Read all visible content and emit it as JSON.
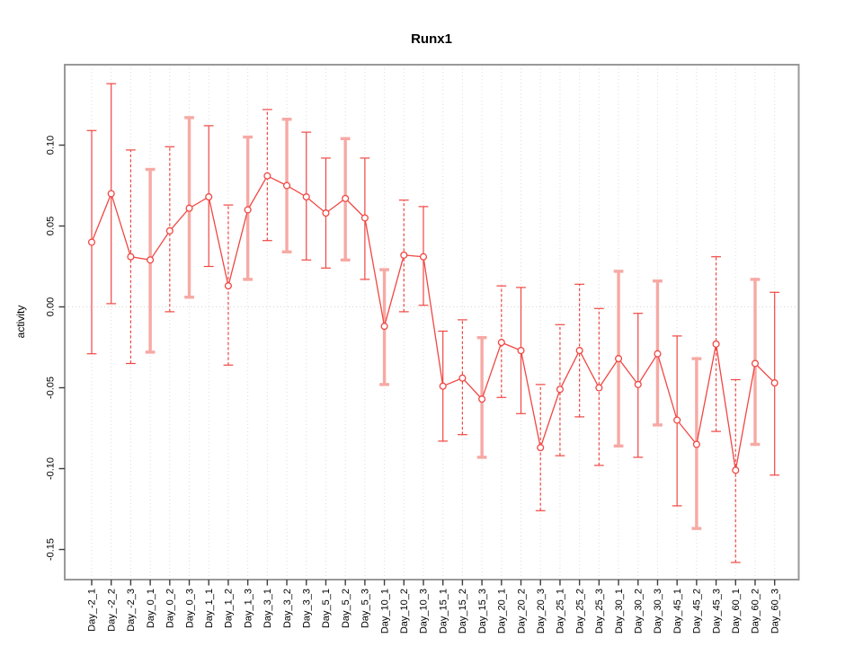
{
  "chart_data": {
    "type": "line",
    "title": "Runx1",
    "xlabel": "",
    "ylabel": "activity",
    "ylim": [
      -0.17,
      0.145
    ],
    "yticks": [
      "0.10",
      "0.05",
      "0.00",
      "-0.05",
      "-0.10",
      "-0.15"
    ],
    "grid": {
      "vertical": "dotted line at every category",
      "horizontal": "dotted reference line at y=0 only"
    },
    "legend": "none",
    "error_bars": true,
    "categories": [
      "Day_-2_1",
      "Day_-2_2",
      "Day_-2_3",
      "Day_0_1",
      "Day_0_2",
      "Day_0_3",
      "Day_1_1",
      "Day_1_2",
      "Day_1_3",
      "Day_3_1",
      "Day_3_2",
      "Day_3_3",
      "Day_5_1",
      "Day_5_2",
      "Day_5_3",
      "Day_10_1",
      "Day_10_2",
      "Day_10_3",
      "Day_15_1",
      "Day_15_2",
      "Day_15_3",
      "Day_20_1",
      "Day_20_2",
      "Day_20_3",
      "Day_25_1",
      "Day_25_2",
      "Day_25_3",
      "Day_30_1",
      "Day_30_2",
      "Day_30_3",
      "Day_45_1",
      "Day_45_2",
      "Day_45_3",
      "Day_60_1",
      "Day_60_2",
      "Day_60_3"
    ],
    "series": [
      {
        "name": "activity",
        "marker": "open-circle",
        "values": [
          0.04,
          0.07,
          0.031,
          0.029,
          0.047,
          0.061,
          0.068,
          0.013,
          0.06,
          0.081,
          0.075,
          0.068,
          0.058,
          0.067,
          0.055,
          -0.012,
          0.032,
          0.031,
          -0.049,
          -0.044,
          -0.057,
          -0.022,
          -0.027,
          -0.087,
          -0.051,
          -0.027,
          -0.05,
          -0.032,
          -0.048,
          -0.029,
          -0.07,
          -0.085,
          -0.023,
          -0.101,
          -0.035,
          -0.047
        ],
        "error_low": [
          -0.029,
          0.002,
          -0.035,
          -0.028,
          -0.003,
          0.006,
          0.025,
          -0.036,
          0.017,
          0.041,
          0.034,
          0.029,
          0.024,
          0.029,
          0.017,
          -0.048,
          -0.003,
          0.001,
          -0.083,
          -0.079,
          -0.093,
          -0.056,
          -0.066,
          -0.126,
          -0.092,
          -0.068,
          -0.098,
          -0.086,
          -0.093,
          -0.073,
          -0.123,
          -0.137,
          -0.077,
          -0.158,
          -0.085,
          -0.104
        ],
        "error_high": [
          0.109,
          0.138,
          0.097,
          0.085,
          0.099,
          0.117,
          0.112,
          0.063,
          0.105,
          0.122,
          0.116,
          0.108,
          0.092,
          0.104,
          0.092,
          0.023,
          0.066,
          0.062,
          -0.015,
          -0.008,
          -0.019,
          0.013,
          0.012,
          -0.048,
          -0.011,
          0.014,
          -0.001,
          0.022,
          -0.004,
          0.016,
          -0.018,
          -0.032,
          0.031,
          -0.045,
          0.017,
          0.009
        ],
        "bar_styles": [
          "thin",
          "thin",
          "dashed",
          "thick",
          "dashed",
          "thick",
          "thin",
          "dashed",
          "thick",
          "dashed",
          "thick",
          "thin",
          "thin",
          "thick",
          "thin",
          "thick",
          "dashed",
          "thin",
          "thin",
          "dashed",
          "thick",
          "dashed",
          "thin",
          "dashed",
          "dashed",
          "dashed",
          "dashed",
          "thick",
          "thin",
          "thick",
          "thin",
          "thick",
          "dashed",
          "dashed",
          "thick",
          "thin"
        ]
      }
    ],
    "colors": {
      "series_red": "#F04743",
      "thick_bar_salmon": "#F7A9A4",
      "grid_gray": "#DEDEDE",
      "zero_line_gray": "#D6D6D6",
      "plot_border_gray": "#999999",
      "tick_mark_dark": "#3C3C3C",
      "text_black": "#000000",
      "background": "#FFFFFF"
    }
  }
}
